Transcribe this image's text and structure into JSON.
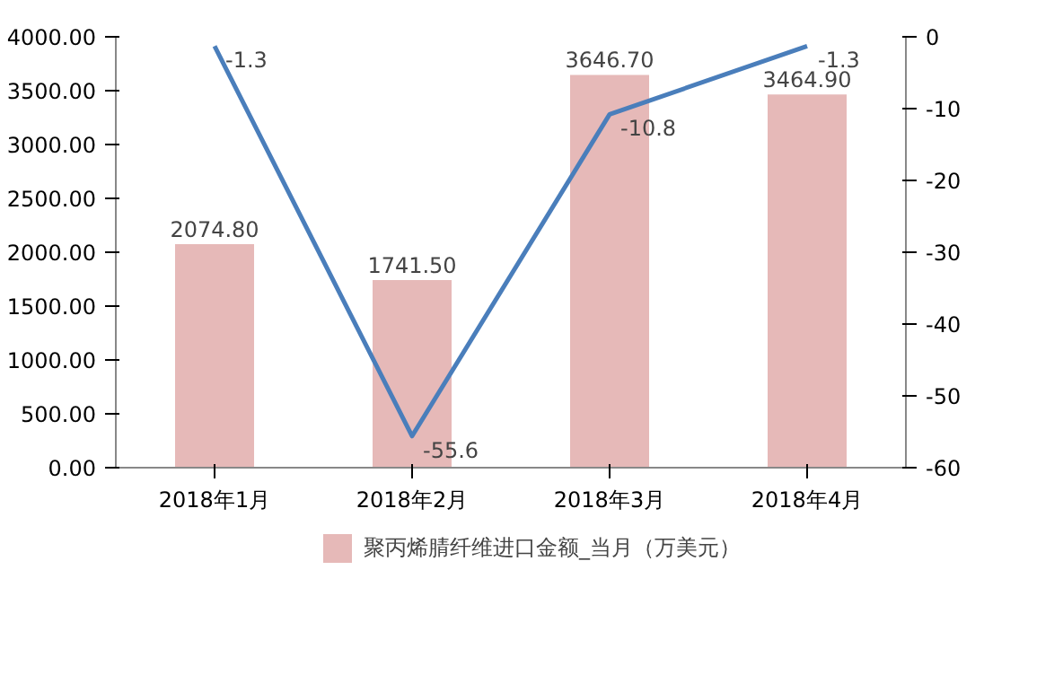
{
  "chart_data": {
    "type": "bar",
    "categories": [
      "2018年1月",
      "2018年2月",
      "2018年3月",
      "2018年4月"
    ],
    "series": [
      {
        "name": "聚丙烯腈纤维进口金额_当月（万美元）",
        "color": "#e6b9b8",
        "values": [
          2074.8,
          1741.5,
          3646.7,
          3464.9
        ],
        "value_labels": [
          "2074.80",
          "1741.50",
          "3646.70",
          "3464.90"
        ]
      },
      {
        "type": "line",
        "axis": "y2",
        "color": "#4a7ebb",
        "values": [
          -1.3,
          -55.6,
          -10.8,
          -1.3
        ],
        "value_labels": [
          "-1.3",
          "-55.6",
          "-10.8",
          "-1.3"
        ]
      }
    ],
    "ylim": [
      0,
      4000
    ],
    "yticks": [
      {
        "value": 0,
        "label": "0.00"
      },
      {
        "value": 500,
        "label": "500.00"
      },
      {
        "value": 1000,
        "label": "1000.00"
      },
      {
        "value": 1500,
        "label": "1500.00"
      },
      {
        "value": 2000,
        "label": "2000.00"
      },
      {
        "value": 2500,
        "label": "2500.00"
      },
      {
        "value": 3000,
        "label": "3000.00"
      },
      {
        "value": 3500,
        "label": "3500.00"
      },
      {
        "value": 4000,
        "label": "4000.00"
      }
    ],
    "y2lim": [
      -60,
      0
    ],
    "y2ticks": [
      0,
      -10,
      -20,
      -30,
      -40,
      -50,
      -60
    ],
    "grid": false,
    "legend": "bottom",
    "marker": "none",
    "line_style": "solid"
  }
}
